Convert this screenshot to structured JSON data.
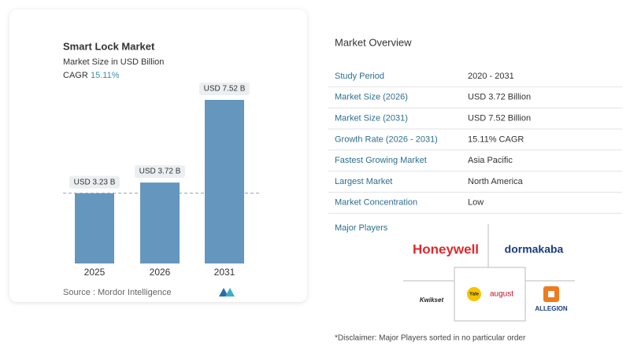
{
  "chart_data": {
    "type": "bar",
    "title": "Smart Lock Market",
    "subtitle": "Market Size in USD Billion",
    "cagr_label": "CAGR",
    "cagr_value": "15.11%",
    "categories": [
      "2025",
      "2026",
      "2031"
    ],
    "values": [
      3.23,
      3.72,
      7.52
    ],
    "value_labels": [
      "USD 3.23 B",
      "USD 3.72 B",
      "USD 7.52 B"
    ],
    "color": "#6596bd",
    "source": "Source :  Mordor Intelligence"
  },
  "overview": {
    "title": "Market Overview",
    "rows": [
      [
        "Study Period",
        "2020 - 2031"
      ],
      [
        "Market Size (2026)",
        "USD 3.72 Billion"
      ],
      [
        "Market Size (2031)",
        "USD 7.52 Billion"
      ],
      [
        "Growth Rate (2026 - 2031)",
        "15.11% CAGR"
      ],
      [
        "Fastest Growing Market",
        "Asia Pacific"
      ],
      [
        "Largest Market",
        "North America"
      ],
      [
        "Market Concentration",
        "Low"
      ]
    ],
    "players_title": "Major Players",
    "players": [
      "Honeywell",
      "dormakaba",
      "Kwikset",
      "Yale",
      "august",
      "ALLEGION"
    ],
    "disclaimer": "*Disclaimer: Major Players sorted in no particular order"
  }
}
